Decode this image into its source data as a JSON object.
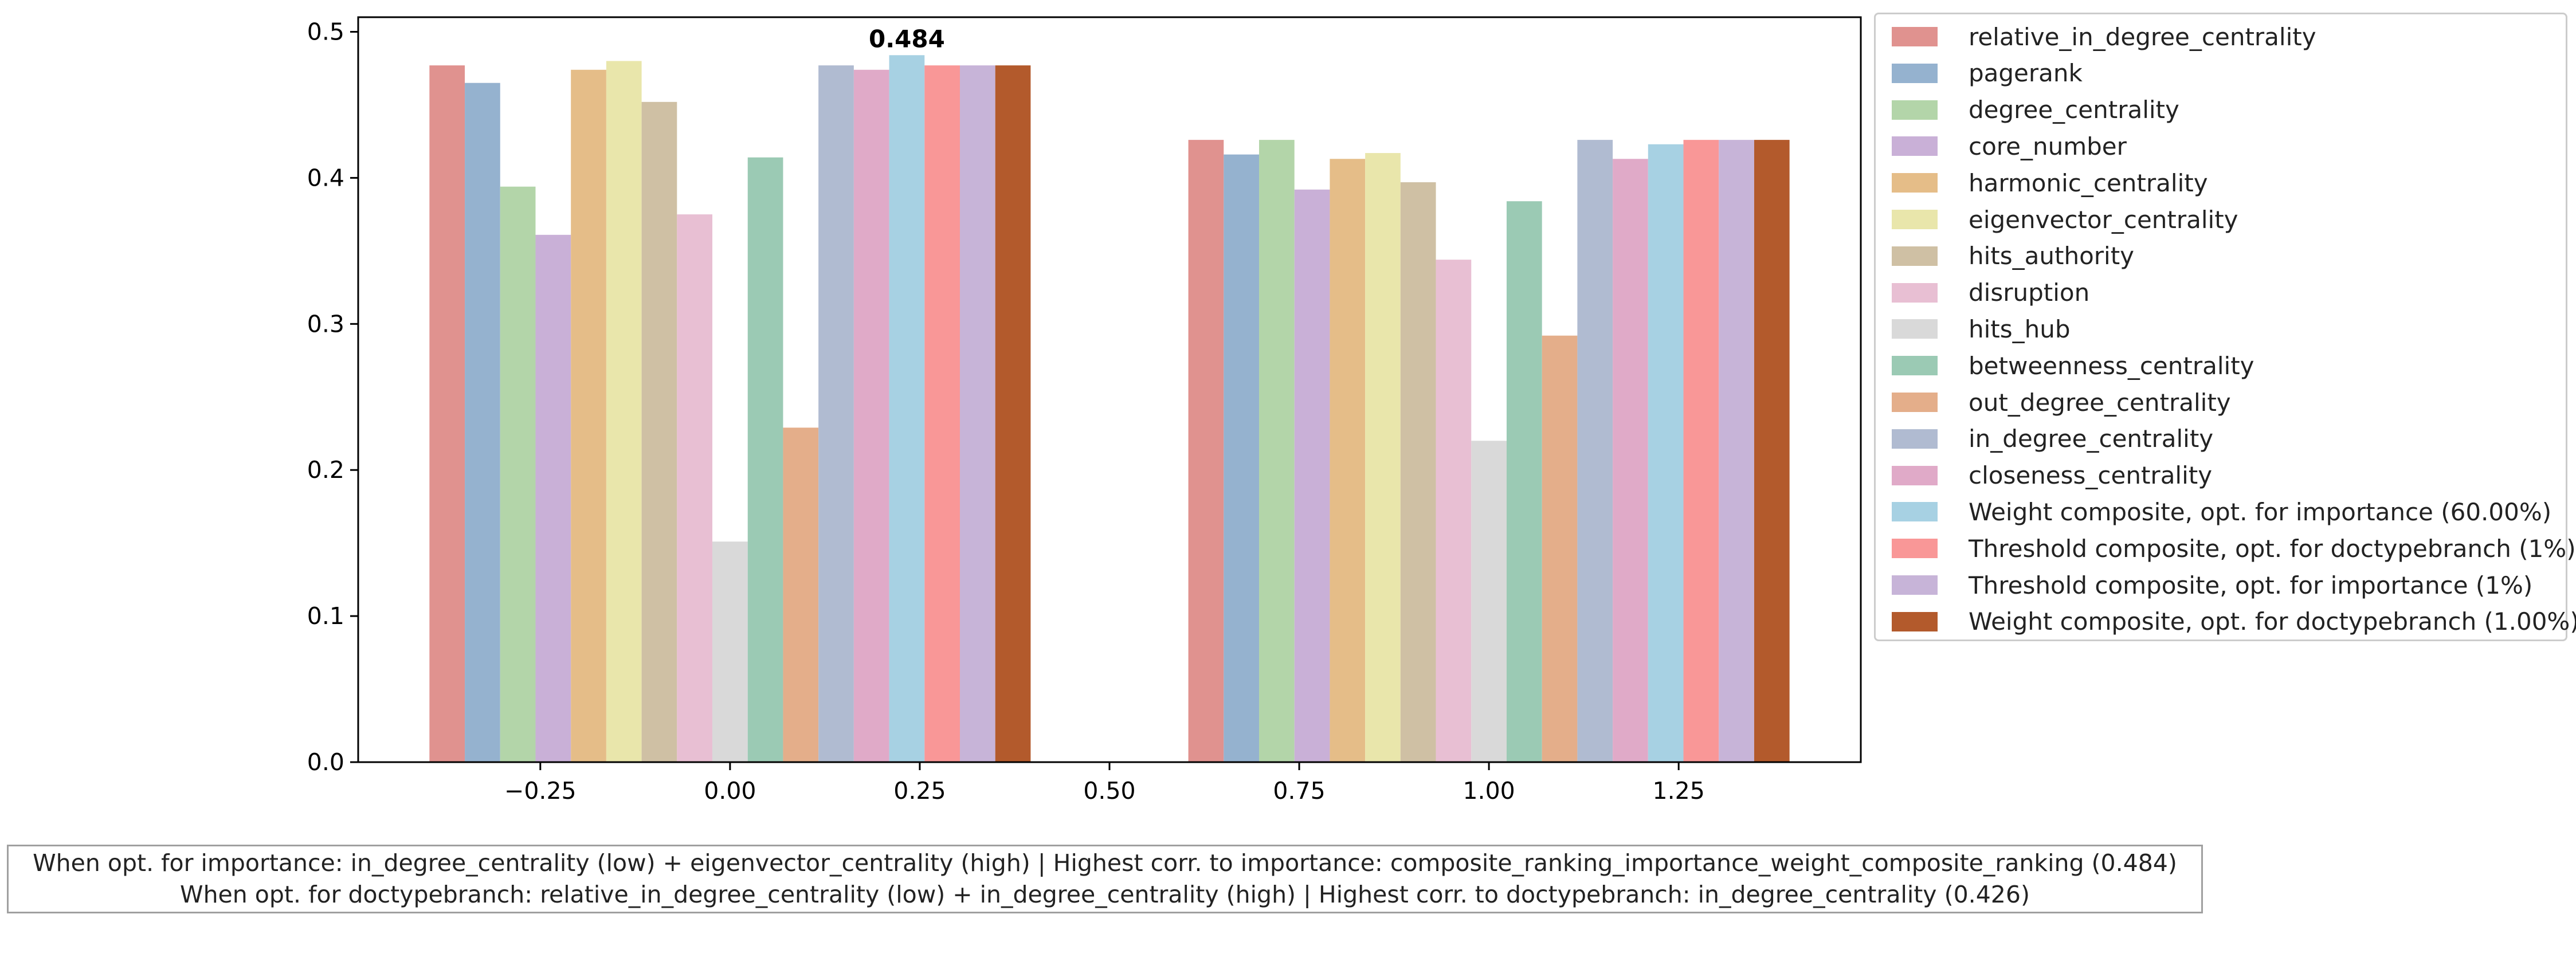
{
  "chart_data": {
    "type": "bar",
    "x_ticks": [
      "−0.25",
      "0.00",
      "0.25",
      "0.50",
      "0.75",
      "1.00",
      "1.25"
    ],
    "y_ticks": [
      "0.0",
      "0.1",
      "0.2",
      "0.3",
      "0.4",
      "0.5"
    ],
    "xlim": [
      -0.49,
      1.49
    ],
    "ylim": [
      0,
      0.51
    ],
    "bar_width": 0.0466,
    "group_centers": [
      0,
      1
    ],
    "annotation": {
      "text": "0.484",
      "series": "Weight composite, opt. for importance (60.00%)",
      "group": 0
    },
    "series": [
      {
        "name": "relative_in_degree_centrality",
        "color": "#e0928f",
        "values": [
          0.477,
          0.426
        ]
      },
      {
        "name": "pagerank",
        "color": "#95b2cf",
        "values": [
          0.465,
          0.416
        ]
      },
      {
        "name": "degree_centrality",
        "color": "#b3d5a9",
        "values": [
          0.394,
          0.426
        ]
      },
      {
        "name": "core_number",
        "color": "#c9b0d7",
        "values": [
          0.361,
          0.392
        ]
      },
      {
        "name": "harmonic_centrality",
        "color": "#e5bd88",
        "values": [
          0.474,
          0.413
        ]
      },
      {
        "name": "eigenvector_centrality",
        "color": "#e9e6ab",
        "values": [
          0.48,
          0.417
        ]
      },
      {
        "name": "hits_authority",
        "color": "#cfc0a4",
        "values": [
          0.452,
          0.397
        ]
      },
      {
        "name": "disruption",
        "color": "#e8bfd3",
        "values": [
          0.375,
          0.344
        ]
      },
      {
        "name": "hits_hub",
        "color": "#d9d9d9",
        "values": [
          0.151,
          0.22
        ]
      },
      {
        "name": "betweenness_centrality",
        "color": "#9bcab4",
        "values": [
          0.414,
          0.384
        ]
      },
      {
        "name": "out_degree_centrality",
        "color": "#e4ae8a",
        "values": [
          0.229,
          0.292
        ]
      },
      {
        "name": "in_degree_centrality",
        "color": "#b0bbd1",
        "values": [
          0.477,
          0.426
        ]
      },
      {
        "name": "closeness_centrality",
        "color": "#e0aac8",
        "values": [
          0.474,
          0.413
        ]
      },
      {
        "name": "Weight composite, opt. for importance (60.00%)",
        "color": "#a7d1e3",
        "values": [
          0.484,
          0.423
        ]
      },
      {
        "name": "Threshold composite, opt. for doctypebranch (1%)",
        "color": "#f99797",
        "values": [
          0.477,
          0.426
        ]
      },
      {
        "name": "Threshold composite, opt. for importance (1%)",
        "color": "#c7b4d8",
        "values": [
          0.477,
          0.426
        ]
      },
      {
        "name": "Weight composite, opt. for doctypebranch (1.00%)",
        "color": "#b35a2c",
        "values": [
          0.477,
          0.426
        ]
      }
    ]
  },
  "caption": {
    "line1": "When opt. for importance: in_degree_centrality (low) + eigenvector_centrality (high) | Highest corr. to importance: composite_ranking_importance_weight_composite_ranking (0.484)",
    "line2": "When opt. for doctypebranch: relative_in_degree_centrality (low) + in_degree_centrality (high) | Highest corr. to doctypebranch: in_degree_centrality (0.426)"
  }
}
